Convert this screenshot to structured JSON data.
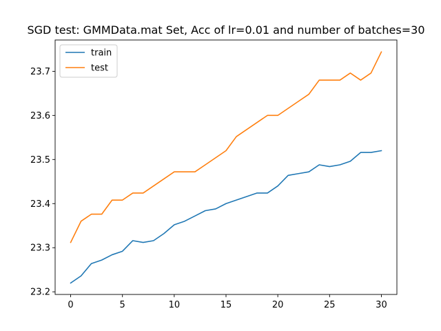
{
  "chart_data": {
    "type": "line",
    "title": "SGD test: GMMData.mat Set, Acc of lr=0.01 and number of batches=30",
    "xlabel": "",
    "ylabel": "",
    "xlim": [
      -1.5,
      31.5
    ],
    "ylim": [
      23.194,
      23.771
    ],
    "xticks": [
      0,
      5,
      10,
      15,
      20,
      25,
      30
    ],
    "yticks": [
      23.2,
      23.3,
      23.4,
      23.5,
      23.6,
      23.7
    ],
    "ytick_labels": [
      "23.2",
      "23.3",
      "23.4",
      "23.5",
      "23.6",
      "23.7"
    ],
    "grid": false,
    "legend_position": "top-left",
    "x": [
      0,
      1,
      2,
      3,
      4,
      5,
      6,
      7,
      8,
      9,
      10,
      11,
      12,
      13,
      14,
      15,
      16,
      17,
      18,
      19,
      20,
      21,
      22,
      23,
      24,
      25,
      26,
      27,
      28,
      29,
      30
    ],
    "series": [
      {
        "name": "train",
        "color": "#1f77b4",
        "values": [
          23.22,
          23.236,
          23.264,
          23.272,
          23.284,
          23.292,
          23.316,
          23.312,
          23.316,
          23.332,
          23.352,
          23.36,
          23.372,
          23.384,
          23.388,
          23.4,
          23.408,
          23.416,
          23.424,
          23.424,
          23.44,
          23.464,
          23.468,
          23.472,
          23.488,
          23.484,
          23.488,
          23.496,
          23.516,
          23.516,
          23.52
        ]
      },
      {
        "name": "test",
        "color": "#ff7f0e",
        "values": [
          23.312,
          23.36,
          23.376,
          23.376,
          23.408,
          23.408,
          23.424,
          23.424,
          23.44,
          23.456,
          23.472,
          23.472,
          23.472,
          23.488,
          23.504,
          23.52,
          23.552,
          23.568,
          23.584,
          23.6,
          23.6,
          23.616,
          23.632,
          23.648,
          23.68,
          23.68,
          23.68,
          23.696,
          23.68,
          23.696,
          23.744
        ]
      }
    ]
  }
}
